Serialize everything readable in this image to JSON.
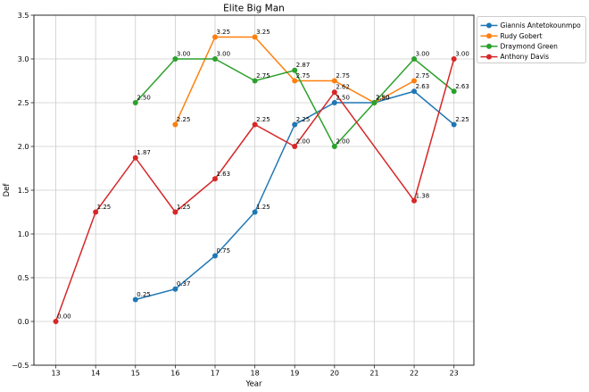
{
  "chart_data": {
    "type": "line",
    "title": "Elite Big Man",
    "xlabel": "Year",
    "ylabel": "Def",
    "xlim": [
      12.45,
      23.5
    ],
    "ylim": [
      -0.5,
      3.5
    ],
    "grid": true,
    "legend_position": "outside-top-right",
    "x_tick_labels": [
      "13",
      "14",
      "15",
      "16",
      "17",
      "18",
      "19",
      "20",
      "21",
      "22",
      "23"
    ],
    "y_tick_labels": [
      "−0.5",
      "0.0",
      "0.5",
      "1.0",
      "1.5",
      "2.0",
      "2.5",
      "3.0",
      "3.5"
    ],
    "series": [
      {
        "name": "Giannis Antetokounmpo",
        "color": "#1f77b4",
        "x": [
          15,
          16,
          17,
          18,
          19,
          20,
          21,
          22,
          23
        ],
        "y": [
          0.25,
          0.37,
          0.75,
          1.25,
          2.25,
          2.5,
          2.5,
          2.63,
          2.25
        ],
        "labels": [
          "0.25",
          "0.37",
          "0.75",
          "1.25",
          "2.25",
          "2.50",
          "2.50",
          "2.63",
          "2.25"
        ]
      },
      {
        "name": "Rudy Gobert",
        "color": "#ff7f0e",
        "x": [
          16,
          17,
          18,
          19,
          20,
          21,
          22
        ],
        "y": [
          2.25,
          3.25,
          3.25,
          2.75,
          2.75,
          2.5,
          2.75
        ],
        "labels": [
          "2.25",
          "3.25",
          "3.25",
          "2.75",
          "2.75",
          "2.50",
          "2.75"
        ]
      },
      {
        "name": "Draymond Green",
        "color": "#2ca02c",
        "x": [
          15,
          16,
          17,
          18,
          19,
          20,
          21,
          22,
          23
        ],
        "y": [
          2.5,
          3.0,
          3.0,
          2.75,
          2.87,
          2.0,
          2.5,
          3.0,
          2.63
        ],
        "labels": [
          "2.50",
          "3.00",
          "3.00",
          "2.75",
          "2.87",
          "2.00",
          "2.50",
          "3.00",
          "2.63"
        ]
      },
      {
        "name": "Anthony Davis",
        "color": "#d62728",
        "x": [
          13,
          14,
          15,
          16,
          17,
          18,
          19,
          20,
          22,
          23
        ],
        "y": [
          0.0,
          1.25,
          1.87,
          1.25,
          1.63,
          2.25,
          2.0,
          2.62,
          1.38,
          3.0
        ],
        "labels": [
          "0.00",
          "1.25",
          "1.87",
          "1.25",
          "1.63",
          "2.25",
          "2.00",
          "2.62",
          "1.38",
          "3.00"
        ]
      }
    ],
    "colors": {
      "grid": "#cccccc",
      "spine": "#262626",
      "tick": "#262626",
      "text": "#000000",
      "legend_border": "#cccccc",
      "background": "#ffffff"
    }
  }
}
